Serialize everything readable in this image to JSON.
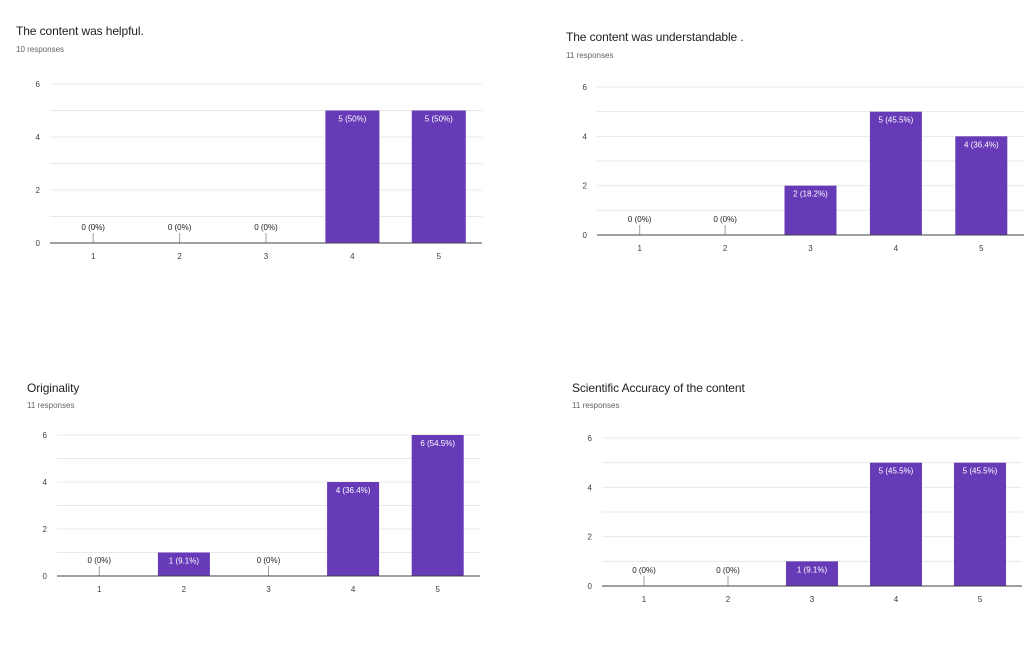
{
  "colors": {
    "bar": "#673ab7",
    "grid": "#e8e8e8",
    "axis": "#3c4043",
    "text": "#5f6368",
    "label_inside": "#ffffff"
  },
  "chart_data": [
    {
      "type": "bar",
      "title": "The content was helpful.",
      "subtitle": "10 responses",
      "categories": [
        "1",
        "2",
        "3",
        "4",
        "5"
      ],
      "values": [
        0,
        0,
        0,
        5,
        5
      ],
      "data_labels": [
        "0 (0%)",
        "0 (0%)",
        "0 (0%)",
        "5 (50%)",
        "5 (50%)"
      ],
      "ylim": [
        0,
        6
      ],
      "yticks": [
        0,
        2,
        4,
        6
      ],
      "grid": true,
      "xlabel": "",
      "ylabel": ""
    },
    {
      "type": "bar",
      "title": "The content was understandable .",
      "subtitle": "11 responses",
      "categories": [
        "1",
        "2",
        "3",
        "4",
        "5"
      ],
      "values": [
        0,
        0,
        2,
        5,
        4
      ],
      "data_labels": [
        "0 (0%)",
        "0 (0%)",
        "2 (18.2%)",
        "5 (45.5%)",
        "4 (36.4%)"
      ],
      "ylim": [
        0,
        6
      ],
      "yticks": [
        0,
        2,
        4,
        6
      ],
      "grid": true,
      "xlabel": "",
      "ylabel": ""
    },
    {
      "type": "bar",
      "title": "Originality",
      "subtitle": "11 responses",
      "categories": [
        "1",
        "2",
        "3",
        "4",
        "5"
      ],
      "values": [
        0,
        1,
        0,
        4,
        6
      ],
      "data_labels": [
        "0 (0%)",
        "1 (9.1%)",
        "0 (0%)",
        "4 (36.4%)",
        "6 (54.5%)"
      ],
      "ylim": [
        0,
        6
      ],
      "yticks": [
        0,
        2,
        4,
        6
      ],
      "grid": true,
      "xlabel": "",
      "ylabel": ""
    },
    {
      "type": "bar",
      "title": "Scientific Accuracy of the content",
      "subtitle": "11 responses",
      "categories": [
        "1",
        "2",
        "3",
        "4",
        "5"
      ],
      "values": [
        0,
        0,
        1,
        5,
        5
      ],
      "data_labels": [
        "0 (0%)",
        "0 (0%)",
        "1 (9.1%)",
        "5 (45.5%)",
        "5 (45.5%)"
      ],
      "ylim": [
        0,
        6
      ],
      "yticks": [
        0,
        2,
        4,
        6
      ],
      "grid": true,
      "xlabel": "",
      "ylabel": ""
    }
  ]
}
